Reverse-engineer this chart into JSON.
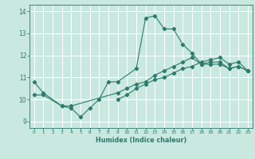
{
  "xlabel": "Humidex (Indice chaleur)",
  "bg_color": "#c8e8e0",
  "grid_color": "#ffffff",
  "line_color": "#2d7a6a",
  "xlim": [
    -0.5,
    23.5
  ],
  "ylim": [
    8.7,
    14.3
  ],
  "xticks": [
    0,
    1,
    2,
    3,
    4,
    5,
    6,
    7,
    8,
    9,
    10,
    11,
    12,
    13,
    14,
    15,
    16,
    17,
    18,
    19,
    20,
    21,
    22,
    23
  ],
  "yticks": [
    9,
    10,
    11,
    12,
    13,
    14
  ],
  "line1_x": [
    0,
    1,
    3,
    4,
    5,
    6,
    7,
    8,
    9,
    11,
    12,
    13,
    14,
    15,
    16,
    17,
    18,
    19,
    20,
    21,
    22,
    23
  ],
  "line1_y": [
    10.8,
    10.3,
    9.7,
    9.6,
    9.2,
    9.6,
    10.0,
    10.8,
    10.8,
    11.4,
    13.7,
    13.8,
    13.2,
    13.2,
    12.5,
    12.1,
    11.6,
    11.6,
    11.6,
    11.4,
    11.5,
    11.3
  ],
  "line2_x": [
    0,
    1,
    3,
    4,
    9,
    10,
    11,
    12,
    13,
    14,
    15,
    16,
    17,
    18,
    19,
    20,
    21,
    22,
    23
  ],
  "line2_y": [
    10.2,
    10.2,
    9.7,
    9.7,
    10.3,
    10.5,
    10.7,
    10.8,
    11.1,
    11.3,
    11.5,
    11.7,
    11.9,
    11.6,
    11.7,
    11.7,
    11.4,
    11.5,
    11.3
  ],
  "line3_x": [
    9,
    10,
    11,
    12,
    13,
    14,
    15,
    16,
    17,
    18,
    19,
    20,
    21,
    22,
    23
  ],
  "line3_y": [
    10.0,
    10.2,
    10.5,
    10.7,
    10.9,
    11.0,
    11.2,
    11.4,
    11.5,
    11.7,
    11.8,
    11.9,
    11.6,
    11.7,
    11.3
  ]
}
